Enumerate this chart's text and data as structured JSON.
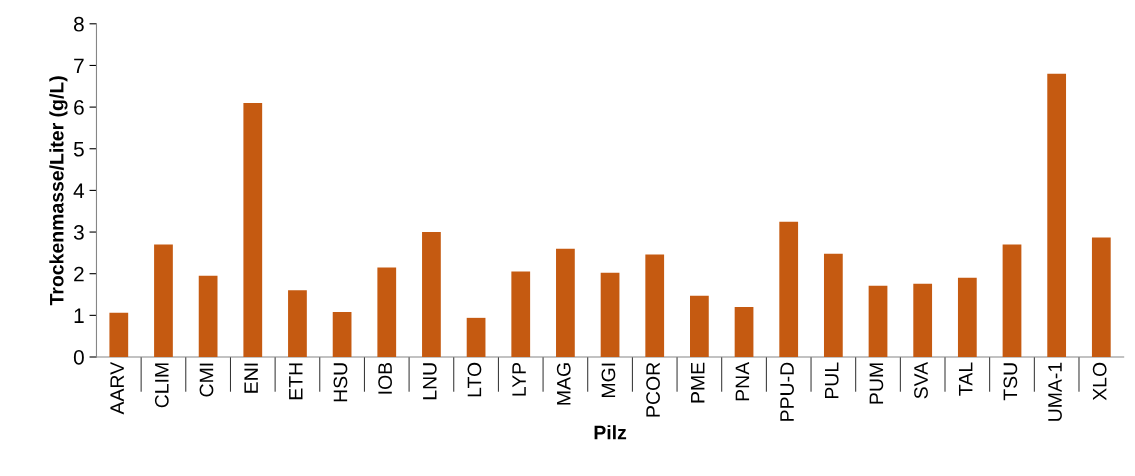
{
  "chart_data": {
    "type": "bar",
    "xlabel": "Pilz",
    "ylabel": "Trockenmasse/Liter (g/L)",
    "categories": [
      "AARV",
      "CLIM",
      "CMI",
      "ENI",
      "ETH",
      "HSU",
      "IOB",
      "LNU",
      "LTO",
      "LYP",
      "MAG",
      "MGI",
      "PCOR",
      "PME",
      "PNA",
      "PPU-D",
      "PUL",
      "PUM",
      "SVA",
      "TAL",
      "TSU",
      "UMA-1",
      "XLO"
    ],
    "values": [
      1.06,
      2.7,
      1.95,
      6.1,
      1.6,
      1.08,
      2.15,
      3.0,
      0.94,
      2.05,
      2.6,
      2.02,
      2.46,
      1.47,
      1.2,
      3.25,
      2.48,
      1.71,
      1.76,
      1.9,
      2.7,
      6.8,
      2.87
    ],
    "color": "#c55a11",
    "ylim": [
      0,
      8
    ],
    "yticks": [
      0,
      1,
      2,
      3,
      4,
      5,
      6,
      7,
      8
    ],
    "grid": false,
    "legend": false
  }
}
